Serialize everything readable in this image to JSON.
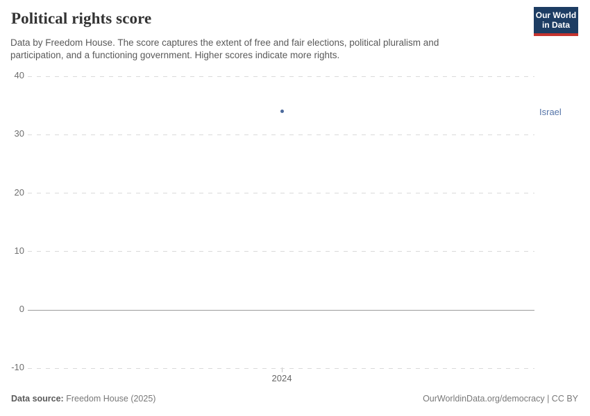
{
  "header": {
    "title": "Political rights score",
    "subtitle_lines": [
      "Data by Freedom House. The score captures the extent of free and fair elections, political pluralism and",
      "participation, and a functioning government. Higher scores indicate more rights."
    ],
    "logo": {
      "line1": "Our World",
      "line2": "in Data",
      "bg_color": "#1d3d63",
      "accent_color": "#c5342f"
    }
  },
  "chart_data": {
    "type": "scatter",
    "title": "Political rights score",
    "x": [
      2024
    ],
    "series": [
      {
        "name": "Israel",
        "values": [
          34
        ],
        "color": "#4c6a9c"
      }
    ],
    "xlabel": "",
    "ylabel": "",
    "ylim": [
      -10,
      40
    ],
    "yticks": [
      -10,
      0,
      10,
      20,
      30,
      40
    ],
    "xticks": [
      "2024"
    ],
    "grid": "horizontal-dashed",
    "zero_line": true,
    "legend_position": "right-of-plot",
    "entity_label_color": "#5474a8"
  },
  "footer": {
    "source_label": "Data source:",
    "source_value": "Freedom House (2025)",
    "credit": "OurWorldinData.org/democracy | CC BY"
  }
}
